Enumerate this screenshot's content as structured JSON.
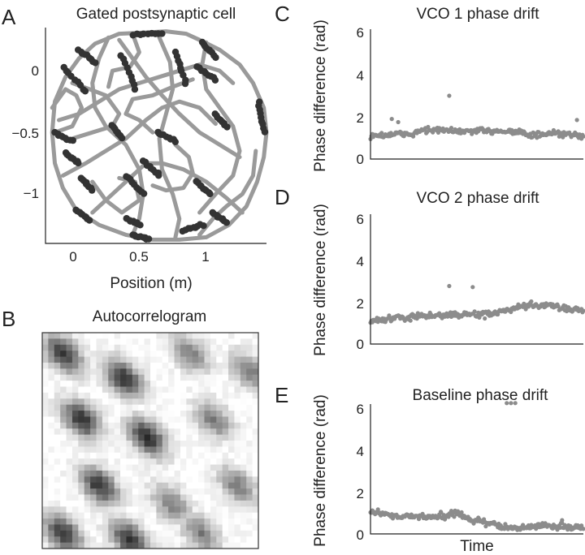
{
  "panels": {
    "A": {
      "letter": "A",
      "title": "Gated postsynaptic cell",
      "xlabel": "Position (m)",
      "xticks": [
        "0",
        "0.5",
        "1"
      ],
      "yticks": [
        "0",
        "−0.5",
        "−1"
      ]
    },
    "B": {
      "letter": "B",
      "title": "Autocorrelogram"
    },
    "C": {
      "letter": "C",
      "title": "VCO 1 phase drift",
      "ylabel": "Phase difference (rad)",
      "yticks": [
        "6",
        "4",
        "2",
        "0"
      ]
    },
    "D": {
      "letter": "D",
      "title": "VCO 2 phase drift",
      "ylabel": "Phase difference (rad)",
      "yticks": [
        "6",
        "4",
        "2",
        "0"
      ]
    },
    "E": {
      "letter": "E",
      "title": "Baseline phase drift",
      "ylabel": "Phase difference (rad)",
      "yticks": [
        "6",
        "4",
        "2",
        "0"
      ],
      "xlabel": "Time"
    }
  },
  "colors": {
    "trajectory": "#9a9a9a",
    "spikes": "#333333",
    "drift_points": "#8c8c8c"
  },
  "chart_data": [
    {
      "panel": "A",
      "type": "scatter",
      "title": "Gated postsynaptic cell",
      "xlabel": "Position (m)",
      "ylabel": "",
      "xlim": [
        -0.25,
        1.4
      ],
      "ylim": [
        -1.45,
        0.3
      ],
      "series": [
        {
          "values": [
            [
              0.8,
              0.25
            ],
            [
              0.9,
              0.2
            ],
            [
              1.05,
              0.12
            ],
            [
              1.2,
              0.0
            ],
            [
              1.3,
              -0.15
            ],
            [
              1.38,
              -0.35
            ],
            [
              1.4,
              -0.55
            ],
            [
              1.38,
              -0.75
            ],
            [
              1.33,
              -0.95
            ],
            [
              1.25,
              -1.15
            ],
            [
              1.12,
              -1.3
            ],
            [
              0.95,
              -1.4
            ],
            [
              0.75,
              -1.42
            ],
            [
              0.55,
              -1.42
            ],
            [
              0.35,
              -1.38
            ],
            [
              0.15,
              -1.3
            ],
            [
              -0.02,
              -1.18
            ],
            [
              -0.12,
              -1.0
            ],
            [
              -0.18,
              -0.8
            ],
            [
              -0.2,
              -0.55
            ],
            [
              -0.18,
              -0.3
            ],
            [
              -0.1,
              -0.1
            ],
            [
              0.0,
              0.05
            ],
            [
              0.12,
              0.17
            ],
            [
              0.3,
              0.25
            ],
            [
              0.5,
              0.26
            ],
            [
              0.65,
              0.27
            ],
            [
              0.8,
              0.25
            ]
          ]
        },
        {
          "values": [
            [
              0.3,
              0.2
            ],
            [
              0.4,
              0.05
            ],
            [
              0.5,
              -0.1
            ],
            [
              0.62,
              -0.25
            ],
            [
              0.75,
              -0.4
            ],
            [
              0.9,
              -0.55
            ],
            [
              1.05,
              -0.65
            ],
            [
              1.2,
              -0.75
            ]
          ]
        },
        {
          "values": [
            [
              -0.15,
              -0.45
            ],
            [
              0.0,
              -0.4
            ],
            [
              0.15,
              -0.3
            ],
            [
              0.3,
              -0.2
            ],
            [
              0.45,
              -0.15
            ],
            [
              0.6,
              -0.1
            ],
            [
              0.75,
              -0.05
            ],
            [
              0.9,
              0.0
            ],
            [
              1.05,
              -0.05
            ],
            [
              1.15,
              -0.15
            ]
          ]
        },
        {
          "values": [
            [
              -0.12,
              -0.9
            ],
            [
              0.05,
              -0.8
            ],
            [
              0.2,
              -0.7
            ],
            [
              0.35,
              -0.6
            ],
            [
              0.5,
              -0.45
            ],
            [
              0.62,
              -0.35
            ],
            [
              0.75,
              -0.3
            ],
            [
              0.9,
              -0.35
            ],
            [
              1.02,
              -0.48
            ]
          ]
        },
        {
          "values": [
            [
              0.1,
              -1.2
            ],
            [
              0.25,
              -1.05
            ],
            [
              0.4,
              -0.9
            ],
            [
              0.5,
              -0.8
            ],
            [
              0.62,
              -0.8
            ],
            [
              0.78,
              -0.85
            ],
            [
              0.95,
              -0.95
            ],
            [
              1.1,
              -1.08
            ],
            [
              1.22,
              -1.2
            ]
          ]
        },
        {
          "values": [
            [
              0.22,
              0.22
            ],
            [
              0.15,
              0.05
            ],
            [
              0.1,
              -0.15
            ],
            [
              0.12,
              -0.35
            ],
            [
              0.2,
              -0.5
            ],
            [
              0.35,
              -0.65
            ],
            [
              0.45,
              -0.85
            ],
            [
              0.48,
              -1.05
            ],
            [
              0.45,
              -1.25
            ],
            [
              0.4,
              -1.38
            ]
          ]
        },
        {
          "values": [
            [
              0.6,
              0.22
            ],
            [
              0.68,
              0.02
            ],
            [
              0.7,
              -0.2
            ],
            [
              0.65,
              -0.4
            ],
            [
              0.6,
              -0.6
            ],
            [
              0.62,
              -0.85
            ],
            [
              0.7,
              -1.05
            ],
            [
              0.75,
              -1.25
            ],
            [
              0.72,
              -1.4
            ]
          ]
        },
        {
          "values": [
            [
              0.95,
              0.18
            ],
            [
              0.92,
              0.0
            ],
            [
              0.95,
              -0.2
            ],
            [
              1.05,
              -0.35
            ],
            [
              1.15,
              -0.5
            ],
            [
              1.2,
              -0.7
            ],
            [
              1.15,
              -0.9
            ],
            [
              1.02,
              -1.05
            ],
            [
              0.9,
              -1.2
            ]
          ]
        },
        {
          "values": [
            [
              -0.05,
              -0.6
            ],
            [
              0.1,
              -0.55
            ],
            [
              0.25,
              -0.5
            ],
            [
              0.3,
              -0.4
            ],
            [
              0.2,
              -0.25
            ],
            [
              0.08,
              -0.2
            ],
            [
              -0.05,
              -0.15
            ]
          ]
        },
        {
          "values": [
            [
              0.1,
              -0.95
            ],
            [
              0.2,
              -1.1
            ],
            [
              0.32,
              -1.2
            ],
            [
              0.45,
              -1.1
            ],
            [
              0.42,
              -0.95
            ],
            [
              0.3,
              -0.92
            ]
          ]
        },
        {
          "values": [
            [
              0.4,
              0.25
            ],
            [
              0.45,
              0.1
            ],
            [
              0.38,
              -0.02
            ],
            [
              0.25,
              -0.05
            ],
            [
              0.22,
              -0.18
            ]
          ]
        },
        {
          "values": [
            [
              0.55,
              -0.55
            ],
            [
              0.45,
              -0.45
            ],
            [
              0.35,
              -0.4
            ],
            [
              0.4,
              -0.28
            ],
            [
              0.55,
              -0.25
            ],
            [
              0.7,
              -0.18
            ],
            [
              0.85,
              -0.12
            ]
          ]
        },
        {
          "values": [
            [
              0.9,
              -1.38
            ],
            [
              1.0,
              -1.25
            ],
            [
              1.1,
              -1.15
            ],
            [
              1.22,
              -1.05
            ],
            [
              1.3,
              -0.9
            ],
            [
              1.32,
              -0.7
            ]
          ]
        },
        {
          "values": [
            [
              -0.2,
              -0.35
            ],
            [
              -0.1,
              -0.2
            ],
            [
              -0.02,
              -0.25
            ],
            [
              0.02,
              -0.35
            ],
            [
              -0.05,
              -0.5
            ],
            [
              -0.18,
              -0.55
            ]
          ]
        },
        {
          "values": [
            [
              0.72,
              -0.65
            ],
            [
              0.82,
              -0.75
            ],
            [
              0.85,
              -0.88
            ],
            [
              0.78,
              -1.0
            ],
            [
              0.65,
              -1.02
            ],
            [
              0.55,
              -0.98
            ]
          ]
        }
      ],
      "spike_clusters": [
        {
          "x": [
            0.4,
            0.62
          ],
          "y": [
            0.25,
            0.25
          ]
        },
        {
          "x": [
            0.0,
            0.12
          ],
          "y": [
            0.12,
            0.02
          ]
        },
        {
          "x": [
            -0.12,
            0.05
          ],
          "y": [
            -0.02,
            -0.22
          ]
        },
        {
          "x": [
            0.32,
            0.42
          ],
          "y": [
            0.08,
            -0.2
          ]
        },
        {
          "x": [
            0.72,
            0.8
          ],
          "y": [
            0.1,
            -0.15
          ]
        },
        {
          "x": [
            0.92,
            1.02
          ],
          "y": [
            0.18,
            0.06
          ]
        },
        {
          "x": [
            0.88,
            1.02
          ],
          "y": [
            -0.02,
            -0.12
          ]
        },
        {
          "x": [
            1.34,
            1.38
          ],
          "y": [
            -0.3,
            -0.55
          ]
        },
        {
          "x": [
            -0.18,
            -0.05
          ],
          "y": [
            -0.55,
            -0.62
          ]
        },
        {
          "x": [
            -0.1,
            0.0
          ],
          "y": [
            -0.72,
            -0.8
          ]
        },
        {
          "x": [
            0.25,
            0.32
          ],
          "y": [
            -0.5,
            -0.6
          ]
        },
        {
          "x": [
            0.58,
            0.72
          ],
          "y": [
            -0.55,
            -0.62
          ]
        },
        {
          "x": [
            1.02,
            1.1
          ],
          "y": [
            -0.4,
            -0.5
          ]
        },
        {
          "x": [
            0.48,
            0.6
          ],
          "y": [
            -0.78,
            -0.9
          ]
        },
        {
          "x": [
            0.35,
            0.48
          ],
          "y": [
            -0.9,
            -1.05
          ]
        },
        {
          "x": [
            0.88,
            0.98
          ],
          "y": [
            -0.95,
            -1.05
          ]
        },
        {
          "x": [
            0.02,
            0.1
          ],
          "y": [
            -0.92,
            -1.02
          ]
        },
        {
          "x": [
            -0.02,
            0.08
          ],
          "y": [
            -1.18,
            -1.26
          ]
        },
        {
          "x": [
            0.4,
            0.52
          ],
          "y": [
            -1.38,
            -1.42
          ]
        },
        {
          "x": [
            0.78,
            0.92
          ],
          "y": [
            -1.35,
            -1.3
          ]
        },
        {
          "x": [
            1.0,
            1.1
          ],
          "y": [
            -1.2,
            -1.28
          ]
        },
        {
          "x": [
            0.35,
            0.45
          ],
          "y": [
            -1.25,
            -1.3
          ]
        }
      ]
    },
    {
      "panel": "B",
      "type": "heatmap",
      "title": "Autocorrelogram",
      "grid_size": 36,
      "pattern": {
        "blob_centers": [
          [
            3,
            3
          ],
          [
            13,
            7
          ],
          [
            24,
            3
          ],
          [
            34,
            6
          ],
          [
            6,
            14
          ],
          [
            17,
            17
          ],
          [
            28,
            14
          ],
          [
            9,
            25
          ],
          [
            21,
            28
          ],
          [
            32,
            25
          ],
          [
            3,
            33
          ],
          [
            14,
            34
          ],
          [
            26,
            33
          ]
        ],
        "center_blob": [
          17,
          17
        ]
      }
    },
    {
      "panel": "C",
      "type": "scatter",
      "title": "VCO 1 phase drift",
      "ylabel": "Phase difference (rad)",
      "ylim": [
        0,
        6
      ],
      "xlim": [
        0,
        1
      ],
      "trend": [
        [
          0,
          1.1
        ],
        [
          0.2,
          1.2
        ],
        [
          0.25,
          1.4
        ],
        [
          0.45,
          1.3
        ],
        [
          0.6,
          1.35
        ],
        [
          0.7,
          1.3
        ],
        [
          0.75,
          1.1
        ],
        [
          0.85,
          1.2
        ],
        [
          1,
          1.1
        ]
      ],
      "outliers": [
        [
          0.1,
          1.9
        ],
        [
          0.13,
          1.75
        ],
        [
          0.37,
          3.0
        ],
        [
          0.97,
          1.85
        ]
      ]
    },
    {
      "panel": "D",
      "type": "scatter",
      "title": "VCO 2 phase drift",
      "ylabel": "Phase difference (rad)",
      "ylim": [
        0,
        6
      ],
      "xlim": [
        0,
        1
      ],
      "trend": [
        [
          0,
          1.1
        ],
        [
          0.15,
          1.25
        ],
        [
          0.3,
          1.35
        ],
        [
          0.45,
          1.4
        ],
        [
          0.55,
          1.4
        ],
        [
          0.65,
          1.6
        ],
        [
          0.75,
          1.85
        ],
        [
          0.85,
          1.8
        ],
        [
          1,
          1.6
        ]
      ],
      "outliers": [
        [
          0.37,
          2.75
        ],
        [
          0.48,
          2.7
        ]
      ]
    },
    {
      "panel": "E",
      "type": "scatter",
      "title": "Baseline phase drift",
      "ylabel": "Phase difference (rad)",
      "xlabel": "Time",
      "ylim": [
        0,
        6
      ],
      "xlim": [
        0,
        1
      ],
      "trend": [
        [
          0,
          1.05
        ],
        [
          0.1,
          0.9
        ],
        [
          0.2,
          0.8
        ],
        [
          0.35,
          0.85
        ],
        [
          0.4,
          1.0
        ],
        [
          0.45,
          0.75
        ],
        [
          0.55,
          0.5
        ],
        [
          0.65,
          0.3
        ],
        [
          0.7,
          0.25
        ],
        [
          0.8,
          0.4
        ],
        [
          0.9,
          0.35
        ],
        [
          1,
          0.3
        ]
      ],
      "outliers": [
        [
          0.64,
          6.2
        ],
        [
          0.66,
          6.2
        ],
        [
          0.68,
          6.2
        ],
        [
          0.33,
          1.05
        ],
        [
          0.9,
          0.65
        ]
      ]
    }
  ]
}
